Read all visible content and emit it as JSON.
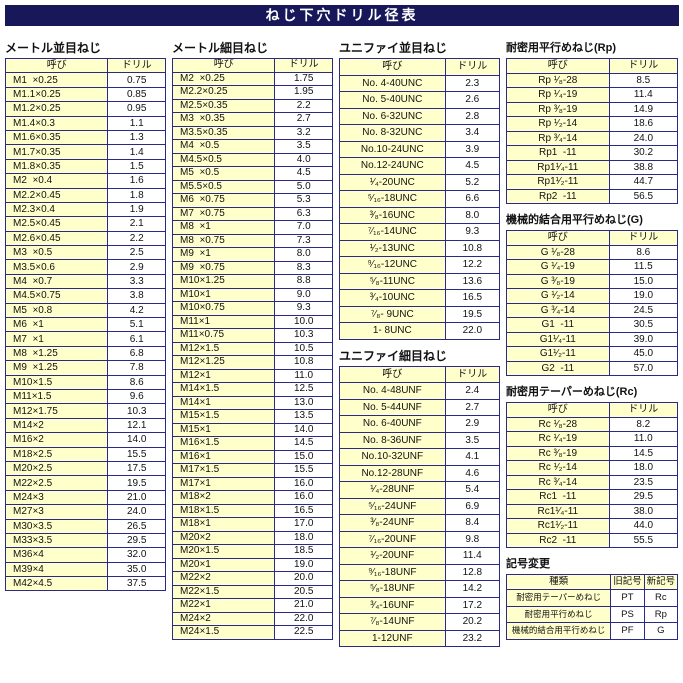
{
  "title": "ねじ下穴ドリル径表",
  "colors": {
    "title_bg": "#17175a",
    "cell_border": "#2a2a85",
    "name_bg": "#ffffcc",
    "value_bg": "#ffffff"
  },
  "sections": {
    "metric_coarse": {
      "title": "メートル並目ねじ",
      "headers": [
        "呼び",
        "ドリル"
      ],
      "rows": [
        [
          "M1  ×0.25",
          "0.75"
        ],
        [
          "M1.1×0.25",
          "0.85"
        ],
        [
          "M1.2×0.25",
          "0.95"
        ],
        [
          "M1.4×0.3",
          "1.1"
        ],
        [
          "M1.6×0.35",
          "1.3"
        ],
        [
          "M1.7×0.35",
          "1.4"
        ],
        [
          "M1.8×0.35",
          "1.5"
        ],
        [
          "M2  ×0.4",
          "1.6"
        ],
        [
          "M2.2×0.45",
          "1.8"
        ],
        [
          "M2.3×0.4",
          "1.9"
        ],
        [
          "M2.5×0.45",
          "2.1"
        ],
        [
          "M2.6×0.45",
          "2.2"
        ],
        [
          "M3  ×0.5",
          "2.5"
        ],
        [
          "M3.5×0.6",
          "2.9"
        ],
        [
          "M4  ×0.7",
          "3.3"
        ],
        [
          "M4.5×0.75",
          "3.8"
        ],
        [
          "M5  ×0.8",
          "4.2"
        ],
        [
          "M6  ×1",
          "5.1"
        ],
        [
          "M7  ×1",
          "6.1"
        ],
        [
          "M8  ×1.25",
          "6.8"
        ],
        [
          "M9  ×1.25",
          "7.8"
        ],
        [
          "M10×1.5",
          "8.6"
        ],
        [
          "M11×1.5",
          "9.6"
        ],
        [
          "M12×1.75",
          "10.3"
        ],
        [
          "M14×2",
          "12.1"
        ],
        [
          "M16×2",
          "14.0"
        ],
        [
          "M18×2.5",
          "15.5"
        ],
        [
          "M20×2.5",
          "17.5"
        ],
        [
          "M22×2.5",
          "19.5"
        ],
        [
          "M24×3",
          "21.0"
        ],
        [
          "M27×3",
          "24.0"
        ],
        [
          "M30×3.5",
          "26.5"
        ],
        [
          "M33×3.5",
          "29.5"
        ],
        [
          "M36×4",
          "32.0"
        ],
        [
          "M39×4",
          "35.0"
        ],
        [
          "M42×4.5",
          "37.5"
        ]
      ]
    },
    "metric_fine": {
      "title": "メートル細目ねじ",
      "headers": [
        "呼び",
        "ドリル"
      ],
      "rows": [
        [
          "M2  ×0.25",
          "1.75"
        ],
        [
          "M2.2×0.25",
          "1.95"
        ],
        [
          "M2.5×0.35",
          "2.2"
        ],
        [
          "M3  ×0.35",
          "2.7"
        ],
        [
          "M3.5×0.35",
          "3.2"
        ],
        [
          "M4  ×0.5",
          "3.5"
        ],
        [
          "M4.5×0.5",
          "4.0"
        ],
        [
          "M5  ×0.5",
          "4.5"
        ],
        [
          "M5.5×0.5",
          "5.0"
        ],
        [
          "M6  ×0.75",
          "5.3"
        ],
        [
          "M7  ×0.75",
          "6.3"
        ],
        [
          "M8  ×1",
          "7.0"
        ],
        [
          "M8  ×0.75",
          "7.3"
        ],
        [
          "M9  ×1",
          "8.0"
        ],
        [
          "M9  ×0.75",
          "8.3"
        ],
        [
          "M10×1.25",
          "8.8"
        ],
        [
          "M10×1",
          "9.0"
        ],
        [
          "M10×0.75",
          "9.3"
        ],
        [
          "M11×1",
          "10.0"
        ],
        [
          "M11×0.75",
          "10.3"
        ],
        [
          "M12×1.5",
          "10.5"
        ],
        [
          "M12×1.25",
          "10.8"
        ],
        [
          "M12×1",
          "11.0"
        ],
        [
          "M14×1.5",
          "12.5"
        ],
        [
          "M14×1",
          "13.0"
        ],
        [
          "M15×1.5",
          "13.5"
        ],
        [
          "M15×1",
          "14.0"
        ],
        [
          "M16×1.5",
          "14.5"
        ],
        [
          "M16×1",
          "15.0"
        ],
        [
          "M17×1.5",
          "15.5"
        ],
        [
          "M17×1",
          "16.0"
        ],
        [
          "M18×2",
          "16.0"
        ],
        [
          "M18×1.5",
          "16.5"
        ],
        [
          "M18×1",
          "17.0"
        ],
        [
          "M20×2",
          "18.0"
        ],
        [
          "M20×1.5",
          "18.5"
        ],
        [
          "M20×1",
          "19.0"
        ],
        [
          "M22×2",
          "20.0"
        ],
        [
          "M22×1.5",
          "20.5"
        ],
        [
          "M22×1",
          "21.0"
        ],
        [
          "M24×2",
          "22.0"
        ],
        [
          "M24×1.5",
          "22.5"
        ]
      ]
    },
    "unified_coarse": {
      "title": "ユニファイ並目ねじ",
      "headers": [
        "呼び",
        "ドリル"
      ],
      "rows": [
        [
          "No. 4-40UNC",
          "2.3"
        ],
        [
          "No. 5-40UNC",
          "2.6"
        ],
        [
          "No. 6-32UNC",
          "2.8"
        ],
        [
          "No. 8-32UNC",
          "3.4"
        ],
        [
          "No.10-24UNC",
          "3.9"
        ],
        [
          "No.12-24UNC",
          "4.5"
        ],
        [
          "¹⁄₄-20UNC",
          "5.2"
        ],
        [
          "⁵⁄₁₆-18UNC",
          "6.6"
        ],
        [
          "³⁄₈-16UNC",
          "8.0"
        ],
        [
          "⁷⁄₁₆-14UNC",
          "9.3"
        ],
        [
          "¹⁄₂-13UNC",
          "10.8"
        ],
        [
          "⁹⁄₁₆-12UNC",
          "12.2"
        ],
        [
          "⁵⁄₈-11UNC",
          "13.6"
        ],
        [
          "³⁄₄-10UNC",
          "16.5"
        ],
        [
          "⁷⁄₈- 9UNC",
          "19.5"
        ],
        [
          "1- 8UNC",
          "22.0"
        ]
      ]
    },
    "unified_fine": {
      "title": "ユニファイ細目ねじ",
      "headers": [
        "呼び",
        "ドリル"
      ],
      "rows": [
        [
          "No. 4-48UNF",
          "2.4"
        ],
        [
          "No. 5-44UNF",
          "2.7"
        ],
        [
          "No. 6-40UNF",
          "2.9"
        ],
        [
          "No. 8-36UNF",
          "3.5"
        ],
        [
          "No.10-32UNF",
          "4.1"
        ],
        [
          "No.12-28UNF",
          "4.6"
        ],
        [
          "¹⁄₄-28UNF",
          "5.4"
        ],
        [
          "⁵⁄₁₆-24UNF",
          "6.9"
        ],
        [
          "³⁄₈-24UNF",
          "8.4"
        ],
        [
          "⁷⁄₁₆-20UNF",
          "9.8"
        ],
        [
          "¹⁄₂-20UNF",
          "11.4"
        ],
        [
          "⁹⁄₁₆-18UNF",
          "12.8"
        ],
        [
          "⁵⁄₈-18UNF",
          "14.2"
        ],
        [
          "³⁄₄-16UNF",
          "17.2"
        ],
        [
          "⁷⁄₈-14UNF",
          "20.2"
        ],
        [
          "1-12UNF",
          "23.2"
        ]
      ]
    },
    "rp": {
      "title": "耐密用平行めねじ(Rp)",
      "headers": [
        "呼び",
        "ドリル"
      ],
      "rows": [
        [
          "Rp ¹⁄₈-28",
          "8.5"
        ],
        [
          "Rp ¹⁄₄-19",
          "11.4"
        ],
        [
          "Rp ³⁄₈-19",
          "14.9"
        ],
        [
          "Rp ¹⁄₂-14",
          "18.6"
        ],
        [
          "Rp ³⁄₄-14",
          "24.0"
        ],
        [
          "Rp1  -11",
          "30.2"
        ],
        [
          "Rp1¹⁄₄-11",
          "38.8"
        ],
        [
          "Rp1¹⁄₂-11",
          "44.7"
        ],
        [
          "Rp2  -11",
          "56.5"
        ]
      ]
    },
    "g": {
      "title": "機械的結合用平行めねじ(G)",
      "headers": [
        "呼び",
        "ドリル"
      ],
      "rows": [
        [
          "G ¹⁄₈-28",
          "8.6"
        ],
        [
          "G ¹⁄₄-19",
          "11.5"
        ],
        [
          "G ³⁄₈-19",
          "15.0"
        ],
        [
          "G ¹⁄₂-14",
          "19.0"
        ],
        [
          "G ³⁄₄-14",
          "24.5"
        ],
        [
          "G1  -11",
          "30.5"
        ],
        [
          "G1¹⁄₄-11",
          "39.0"
        ],
        [
          "G1¹⁄₂-11",
          "45.0"
        ],
        [
          "G2  -11",
          "57.0"
        ]
      ]
    },
    "rc": {
      "title": "耐密用テーパーめねじ(Rc)",
      "headers": [
        "呼び",
        "ドリル"
      ],
      "rows": [
        [
          "Rc ¹⁄₈-28",
          "8.2"
        ],
        [
          "Rc ¹⁄₄-19",
          "11.0"
        ],
        [
          "Rc ³⁄₈-19",
          "14.5"
        ],
        [
          "Rc ¹⁄₂-14",
          "18.0"
        ],
        [
          "Rc ³⁄₄-14",
          "23.5"
        ],
        [
          "Rc1  -11",
          "29.5"
        ],
        [
          "Rc1¹⁄₄-11",
          "38.0"
        ],
        [
          "Rc1¹⁄₂-11",
          "44.0"
        ],
        [
          "Rc2  -11",
          "55.5"
        ]
      ]
    },
    "symbol_change": {
      "title": "記号変更",
      "headers": [
        "種類",
        "旧記号",
        "新記号"
      ],
      "rows": [
        [
          "耐密用テーパーめねじ",
          "PT",
          "Rc"
        ],
        [
          "耐密用平行めねじ",
          "PS",
          "Rp"
        ],
        [
          "機械的結合用平行めねじ",
          "PF",
          "G"
        ]
      ]
    }
  }
}
